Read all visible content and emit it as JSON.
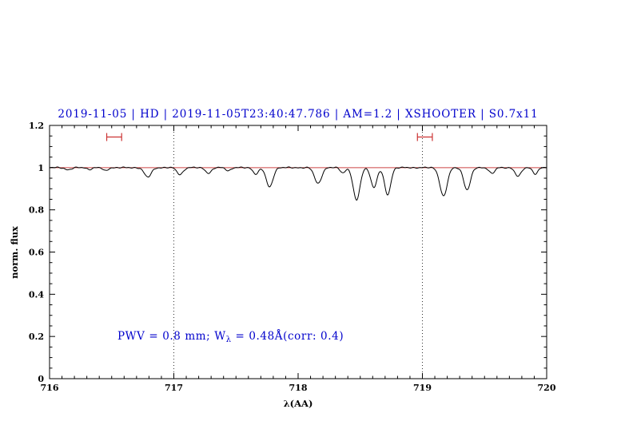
{
  "header": {
    "title": "2019-11-05 | HD | 2019-11-05T23:40:47.786 | AM=1.2 | XSHOOTER | S0.7x11"
  },
  "annotation": {
    "part1": "PWV = 0.8 mm; W",
    "sub": "λ",
    "part2": " = 0.48Å(corr: 0.4)"
  },
  "chart_data": {
    "type": "line",
    "title": "2019-11-05 | HD | 2019-11-05T23:40:47.786 | AM=1.2 | XSHOOTER | S0.7x11",
    "xlabel": "λ(AA)",
    "ylabel": "norm. flux",
    "xlim": [
      716,
      720
    ],
    "ylim": [
      0,
      1.2
    ],
    "x_ticks": [
      716,
      717,
      718,
      719,
      720
    ],
    "x_tick_labels": [
      "716",
      "717",
      "718",
      "719",
      "720"
    ],
    "y_ticks": [
      0,
      0.2,
      0.4,
      0.6,
      0.8,
      1,
      1.2
    ],
    "y_tick_labels": [
      "0",
      "0.2",
      "0.4",
      "0.6",
      "0.8",
      "1",
      "1.2"
    ],
    "x_minor_step": 0.1,
    "y_minor_step": 0.05,
    "grid": false,
    "legend": false,
    "continuum": {
      "y": 1.0
    },
    "vlines": [
      717,
      719
    ],
    "range_markers": [
      {
        "x1": 716.46,
        "x2": 716.58,
        "y": 1.145
      },
      {
        "x1": 718.96,
        "x2": 719.08,
        "y": 1.145
      }
    ],
    "series": [
      {
        "name": "normalized telluric spectrum",
        "model": "continuum_minus_gaussians",
        "continuum_level": 1.0,
        "absorption_lines": [
          {
            "center": 716.15,
            "depth": 0.01,
            "sigma": 0.025
          },
          {
            "center": 716.32,
            "depth": 0.008,
            "sigma": 0.02
          },
          {
            "center": 716.45,
            "depth": 0.015,
            "sigma": 0.02
          },
          {
            "center": 716.79,
            "depth": 0.045,
            "sigma": 0.028
          },
          {
            "center": 717.05,
            "depth": 0.032,
            "sigma": 0.025
          },
          {
            "center": 717.28,
            "depth": 0.026,
            "sigma": 0.024
          },
          {
            "center": 717.44,
            "depth": 0.014,
            "sigma": 0.02
          },
          {
            "center": 717.66,
            "depth": 0.03,
            "sigma": 0.022
          },
          {
            "center": 717.77,
            "depth": 0.092,
            "sigma": 0.027
          },
          {
            "center": 718.16,
            "depth": 0.075,
            "sigma": 0.028
          },
          {
            "center": 718.36,
            "depth": 0.024,
            "sigma": 0.02
          },
          {
            "center": 718.47,
            "depth": 0.155,
            "sigma": 0.027
          },
          {
            "center": 718.61,
            "depth": 0.095,
            "sigma": 0.024
          },
          {
            "center": 718.72,
            "depth": 0.128,
            "sigma": 0.025
          },
          {
            "center": 719.17,
            "depth": 0.135,
            "sigma": 0.029
          },
          {
            "center": 719.36,
            "depth": 0.105,
            "sigma": 0.027
          },
          {
            "center": 719.56,
            "depth": 0.028,
            "sigma": 0.022
          },
          {
            "center": 719.77,
            "depth": 0.042,
            "sigma": 0.024
          },
          {
            "center": 719.91,
            "depth": 0.03,
            "sigma": 0.02
          }
        ]
      }
    ],
    "colors": {
      "spectrum": "#000000",
      "continuum": "#cc4444",
      "marker": "#cc3333",
      "vline": "#333333",
      "frame": "#000000",
      "title": "#0000cc",
      "annotation": "#0000cc"
    }
  }
}
